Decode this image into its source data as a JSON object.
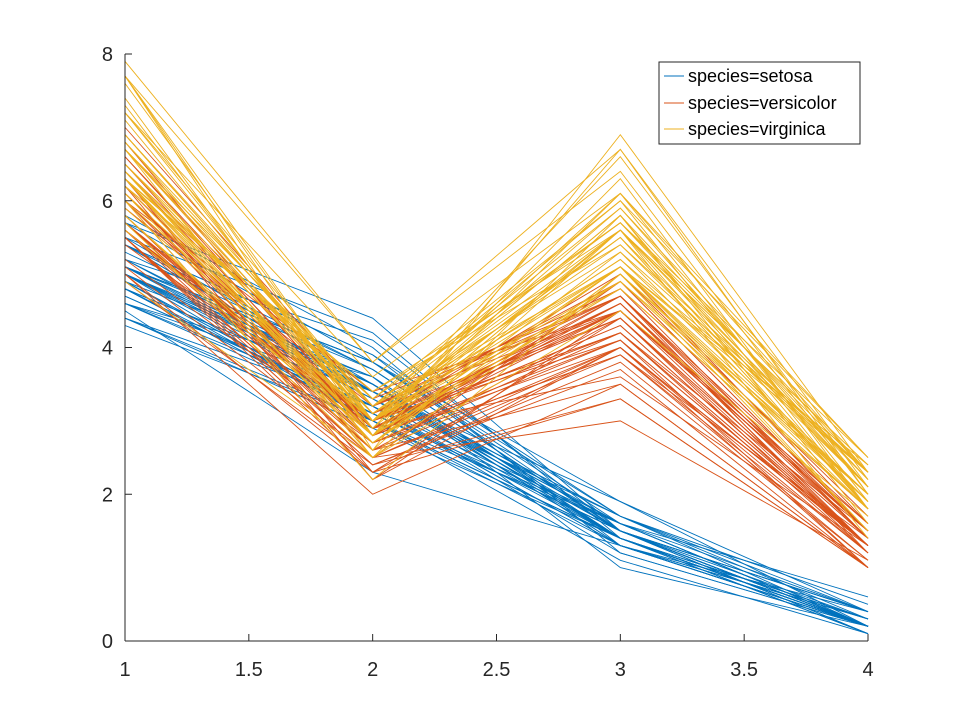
{
  "chart_data": {
    "type": "line",
    "title": "",
    "xlabel": "",
    "ylabel": "",
    "x": [
      1,
      2,
      3,
      4
    ],
    "xlim": [
      1,
      4
    ],
    "ylim": [
      0,
      8
    ],
    "xticks": [
      "1",
      "1.5",
      "2",
      "2.5",
      "3",
      "3.5",
      "4"
    ],
    "yticks": [
      "0",
      "2",
      "4",
      "6",
      "8"
    ],
    "grid": false,
    "legend_position": "top-right",
    "series": [
      {
        "name": "species=setosa",
        "color": "#0072BD",
        "lines": [
          [
            5.1,
            3.5,
            1.4,
            0.2
          ],
          [
            4.9,
            3.0,
            1.4,
            0.2
          ],
          [
            4.7,
            3.2,
            1.3,
            0.2
          ],
          [
            4.6,
            3.1,
            1.5,
            0.2
          ],
          [
            5.0,
            3.6,
            1.4,
            0.2
          ],
          [
            5.4,
            3.9,
            1.7,
            0.4
          ],
          [
            4.6,
            3.4,
            1.4,
            0.3
          ],
          [
            5.0,
            3.4,
            1.5,
            0.2
          ],
          [
            4.4,
            2.9,
            1.4,
            0.2
          ],
          [
            4.9,
            3.1,
            1.5,
            0.1
          ],
          [
            5.4,
            3.7,
            1.5,
            0.2
          ],
          [
            4.8,
            3.4,
            1.6,
            0.2
          ],
          [
            4.8,
            3.0,
            1.4,
            0.1
          ],
          [
            4.3,
            3.0,
            1.1,
            0.1
          ],
          [
            5.8,
            4.0,
            1.2,
            0.2
          ],
          [
            5.7,
            4.4,
            1.5,
            0.4
          ],
          [
            5.4,
            3.9,
            1.3,
            0.4
          ],
          [
            5.1,
            3.5,
            1.4,
            0.3
          ],
          [
            5.7,
            3.8,
            1.7,
            0.3
          ],
          [
            5.1,
            3.8,
            1.5,
            0.3
          ],
          [
            5.4,
            3.4,
            1.7,
            0.2
          ],
          [
            5.1,
            3.7,
            1.5,
            0.4
          ],
          [
            4.6,
            3.6,
            1.0,
            0.2
          ],
          [
            5.1,
            3.3,
            1.7,
            0.5
          ],
          [
            4.8,
            3.4,
            1.9,
            0.2
          ],
          [
            5.0,
            3.0,
            1.6,
            0.2
          ],
          [
            5.0,
            3.4,
            1.6,
            0.4
          ],
          [
            5.2,
            3.5,
            1.5,
            0.2
          ],
          [
            5.2,
            3.4,
            1.4,
            0.2
          ],
          [
            4.7,
            3.2,
            1.6,
            0.2
          ],
          [
            4.8,
            3.1,
            1.6,
            0.2
          ],
          [
            5.4,
            3.4,
            1.5,
            0.4
          ],
          [
            5.2,
            4.1,
            1.5,
            0.1
          ],
          [
            5.5,
            4.2,
            1.4,
            0.2
          ],
          [
            4.9,
            3.1,
            1.5,
            0.2
          ],
          [
            5.0,
            3.2,
            1.2,
            0.2
          ],
          [
            5.5,
            3.5,
            1.3,
            0.2
          ],
          [
            4.9,
            3.6,
            1.4,
            0.1
          ],
          [
            4.4,
            3.0,
            1.3,
            0.2
          ],
          [
            5.1,
            3.4,
            1.5,
            0.2
          ],
          [
            5.0,
            3.5,
            1.3,
            0.3
          ],
          [
            4.5,
            2.3,
            1.3,
            0.3
          ],
          [
            4.4,
            3.2,
            1.3,
            0.2
          ],
          [
            5.0,
            3.5,
            1.6,
            0.6
          ],
          [
            5.1,
            3.8,
            1.9,
            0.4
          ],
          [
            4.8,
            3.0,
            1.4,
            0.3
          ],
          [
            5.1,
            3.8,
            1.6,
            0.2
          ],
          [
            4.6,
            3.2,
            1.4,
            0.2
          ],
          [
            5.3,
            3.7,
            1.5,
            0.2
          ],
          [
            5.0,
            3.3,
            1.4,
            0.2
          ]
        ]
      },
      {
        "name": "species=versicolor",
        "color": "#D95319",
        "lines": [
          [
            7.0,
            3.2,
            4.7,
            1.4
          ],
          [
            6.4,
            3.2,
            4.5,
            1.5
          ],
          [
            6.9,
            3.1,
            4.9,
            1.5
          ],
          [
            5.5,
            2.3,
            4.0,
            1.3
          ],
          [
            6.5,
            2.8,
            4.6,
            1.5
          ],
          [
            5.7,
            2.8,
            4.5,
            1.3
          ],
          [
            6.3,
            3.3,
            4.7,
            1.6
          ],
          [
            4.9,
            2.4,
            3.3,
            1.0
          ],
          [
            6.6,
            2.9,
            4.6,
            1.3
          ],
          [
            5.2,
            2.7,
            3.9,
            1.4
          ],
          [
            5.0,
            2.0,
            3.5,
            1.0
          ],
          [
            5.9,
            3.0,
            4.2,
            1.5
          ],
          [
            6.0,
            2.2,
            4.0,
            1.0
          ],
          [
            6.1,
            2.9,
            4.7,
            1.4
          ],
          [
            5.6,
            2.9,
            3.6,
            1.3
          ],
          [
            6.7,
            3.1,
            4.4,
            1.4
          ],
          [
            5.6,
            3.0,
            4.5,
            1.5
          ],
          [
            5.8,
            2.7,
            4.1,
            1.0
          ],
          [
            6.2,
            2.2,
            4.5,
            1.5
          ],
          [
            5.6,
            2.5,
            3.9,
            1.1
          ],
          [
            5.9,
            3.2,
            4.8,
            1.8
          ],
          [
            6.1,
            2.8,
            4.0,
            1.3
          ],
          [
            6.3,
            2.5,
            4.9,
            1.5
          ],
          [
            6.1,
            2.8,
            4.7,
            1.2
          ],
          [
            6.4,
            2.9,
            4.3,
            1.3
          ],
          [
            6.6,
            3.0,
            4.4,
            1.4
          ],
          [
            6.8,
            2.8,
            4.8,
            1.4
          ],
          [
            6.7,
            3.0,
            5.0,
            1.7
          ],
          [
            6.0,
            2.9,
            4.5,
            1.5
          ],
          [
            5.7,
            2.6,
            3.5,
            1.0
          ],
          [
            5.5,
            2.4,
            3.8,
            1.1
          ],
          [
            5.5,
            2.4,
            3.7,
            1.0
          ],
          [
            5.8,
            2.7,
            3.9,
            1.2
          ],
          [
            6.0,
            2.7,
            5.1,
            1.6
          ],
          [
            5.4,
            3.0,
            4.5,
            1.5
          ],
          [
            6.0,
            3.4,
            4.5,
            1.6
          ],
          [
            6.7,
            3.1,
            4.7,
            1.5
          ],
          [
            6.3,
            2.3,
            4.4,
            1.3
          ],
          [
            5.6,
            3.0,
            4.1,
            1.3
          ],
          [
            5.5,
            2.5,
            4.0,
            1.3
          ],
          [
            5.5,
            2.6,
            4.4,
            1.2
          ],
          [
            6.1,
            3.0,
            4.6,
            1.4
          ],
          [
            5.8,
            2.6,
            4.0,
            1.2
          ],
          [
            5.0,
            2.3,
            3.3,
            1.0
          ],
          [
            5.6,
            2.7,
            4.2,
            1.3
          ],
          [
            5.7,
            3.0,
            4.2,
            1.2
          ],
          [
            5.7,
            2.9,
            4.2,
            1.3
          ],
          [
            6.2,
            2.9,
            4.3,
            1.3
          ],
          [
            5.1,
            2.5,
            3.0,
            1.1
          ],
          [
            5.7,
            2.8,
            4.1,
            1.3
          ]
        ]
      },
      {
        "name": "species=virginica",
        "color": "#EDB120",
        "lines": [
          [
            6.3,
            3.3,
            6.0,
            2.5
          ],
          [
            5.8,
            2.7,
            5.1,
            1.9
          ],
          [
            7.1,
            3.0,
            5.9,
            2.1
          ],
          [
            6.3,
            2.9,
            5.6,
            1.8
          ],
          [
            6.5,
            3.0,
            5.8,
            2.2
          ],
          [
            7.6,
            3.0,
            6.6,
            2.1
          ],
          [
            4.9,
            2.5,
            4.5,
            1.7
          ],
          [
            7.3,
            2.9,
            6.3,
            1.8
          ],
          [
            6.7,
            2.5,
            5.8,
            1.8
          ],
          [
            7.2,
            3.6,
            6.1,
            2.5
          ],
          [
            6.5,
            3.2,
            5.1,
            2.0
          ],
          [
            6.4,
            2.7,
            5.3,
            1.9
          ],
          [
            6.8,
            3.0,
            5.5,
            2.1
          ],
          [
            5.7,
            2.5,
            5.0,
            2.0
          ],
          [
            5.8,
            2.8,
            5.1,
            2.4
          ],
          [
            6.4,
            3.2,
            5.3,
            2.3
          ],
          [
            6.5,
            3.0,
            5.5,
            1.8
          ],
          [
            7.7,
            3.8,
            6.7,
            2.2
          ],
          [
            7.7,
            2.6,
            6.9,
            2.3
          ],
          [
            6.0,
            2.2,
            5.0,
            1.5
          ],
          [
            6.9,
            3.2,
            5.7,
            2.3
          ],
          [
            5.6,
            2.8,
            4.9,
            2.0
          ],
          [
            7.7,
            2.8,
            6.7,
            2.0
          ],
          [
            6.3,
            2.7,
            4.9,
            1.8
          ],
          [
            6.7,
            3.3,
            5.7,
            2.1
          ],
          [
            7.2,
            3.2,
            6.0,
            1.8
          ],
          [
            6.2,
            2.8,
            4.8,
            1.8
          ],
          [
            6.1,
            3.0,
            4.9,
            1.8
          ],
          [
            6.4,
            2.8,
            5.6,
            2.1
          ],
          [
            7.2,
            3.0,
            5.8,
            1.6
          ],
          [
            7.4,
            2.8,
            6.1,
            1.9
          ],
          [
            7.9,
            3.8,
            6.4,
            2.0
          ],
          [
            6.4,
            2.8,
            5.6,
            2.2
          ],
          [
            6.3,
            2.8,
            5.1,
            1.5
          ],
          [
            6.1,
            2.6,
            5.6,
            1.4
          ],
          [
            7.7,
            3.0,
            6.1,
            2.3
          ],
          [
            6.3,
            3.4,
            5.6,
            2.4
          ],
          [
            6.4,
            3.1,
            5.5,
            1.8
          ],
          [
            6.0,
            3.0,
            4.8,
            1.8
          ],
          [
            6.9,
            3.1,
            5.4,
            2.1
          ],
          [
            6.7,
            3.1,
            5.6,
            2.4
          ],
          [
            6.9,
            3.1,
            5.1,
            2.3
          ],
          [
            5.8,
            2.7,
            5.1,
            1.9
          ],
          [
            6.8,
            3.2,
            5.9,
            2.3
          ],
          [
            6.7,
            3.3,
            5.7,
            2.5
          ],
          [
            6.7,
            3.0,
            5.2,
            2.3
          ],
          [
            6.3,
            2.5,
            5.0,
            1.9
          ],
          [
            6.5,
            3.0,
            5.2,
            2.0
          ],
          [
            6.2,
            3.4,
            5.4,
            2.3
          ],
          [
            5.9,
            3.0,
            5.1,
            1.8
          ]
        ]
      }
    ]
  }
}
